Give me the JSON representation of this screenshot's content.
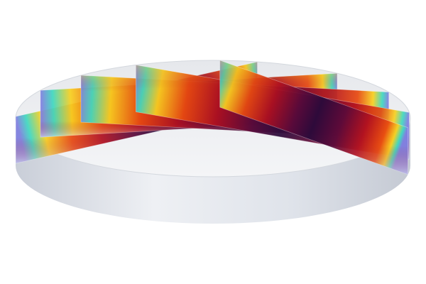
{
  "scene": {
    "object": "cylinder-with-slices",
    "slice_count": 5,
    "colormap": [
      "#2a0a3a",
      "#5a0a3a",
      "#b01020",
      "#e84a10",
      "#f8d020",
      "#40d8c0",
      "#8080e0"
    ],
    "cylinder_color": "#e4e8ee",
    "background": "#ffffff"
  }
}
